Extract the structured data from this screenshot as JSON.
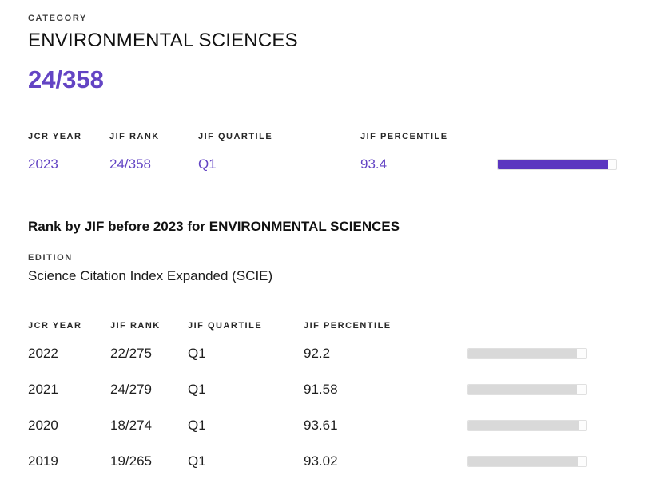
{
  "colors": {
    "accent_purple": "#5b36c0",
    "purple_text": "#6344c4",
    "gray_bar": "#d9d9d9"
  },
  "category_section": {
    "label": "CATEGORY",
    "name": "ENVIRONMENTAL SCIENCES",
    "rank_display": "24/358"
  },
  "table_headers": {
    "year": "JCR YEAR",
    "rank": "JIF RANK",
    "quartile": "JIF QUARTILE",
    "percentile": "JIF PERCENTILE"
  },
  "current_year_table": {
    "row": {
      "year": "2023",
      "rank": "24/358",
      "quartile": "Q1",
      "percentile": "93.4",
      "percentile_value": 93.4
    }
  },
  "history_section": {
    "title": "Rank by JIF before 2023 for ENVIRONMENTAL SCIENCES",
    "edition_label": "EDITION",
    "edition_value": "Science Citation Index Expanded (SCIE)",
    "rows": [
      {
        "year": "2022",
        "rank": "22/275",
        "quartile": "Q1",
        "percentile": "92.2",
        "percentile_value": 92.2
      },
      {
        "year": "2021",
        "rank": "24/279",
        "quartile": "Q1",
        "percentile": "91.58",
        "percentile_value": 91.58
      },
      {
        "year": "2020",
        "rank": "18/274",
        "quartile": "Q1",
        "percentile": "93.61",
        "percentile_value": 93.61
      },
      {
        "year": "2019",
        "rank": "19/265",
        "quartile": "Q1",
        "percentile": "93.02",
        "percentile_value": 93.02
      }
    ]
  }
}
